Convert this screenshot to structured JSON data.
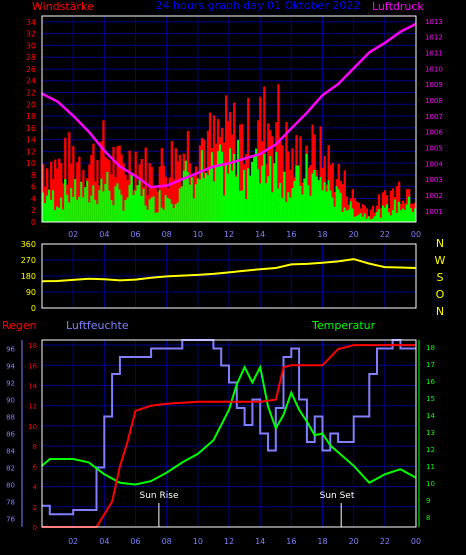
{
  "header": {
    "left_label": "Windstärke",
    "title": "24 hours graph day  01 Oktober 2022",
    "right_label": "Luftdruck"
  },
  "panel3": {
    "rain_label": "Regen",
    "humidity_label": "Luftfeuchte",
    "temp_label": "Temperatur",
    "sunrise_label": "Sun Rise",
    "sunset_label": "Sun Set"
  },
  "direction_letters": [
    "N",
    "W",
    "S",
    "O",
    "N"
  ],
  "colors": {
    "wind_gust": "#ff0000",
    "wind_avg": "#00ff00",
    "pressure": "#ff00ff",
    "direction": "#ffff00",
    "humidity": "#8080ff",
    "temperature": "#00ff00",
    "rain": "#ff0000",
    "grid": "#00008b",
    "frame": "#ffffff"
  },
  "chart_data": [
    {
      "type": "bar",
      "hour_ticks": [
        "02",
        "04",
        "06",
        "08",
        "10",
        "12",
        "14",
        "16",
        "18",
        "20",
        "22",
        "00"
      ],
      "left_axis": {
        "ticks": [
          0,
          2,
          4,
          6,
          8,
          10,
          12,
          14,
          16,
          18,
          20,
          22,
          24,
          26,
          28,
          30,
          32,
          34
        ],
        "ylim": [
          0,
          35
        ]
      },
      "right_axis": {
        "ticks": [
          1001,
          1002,
          1003,
          1004,
          1005,
          1006,
          1007,
          1008,
          1009,
          1010,
          1011,
          1012,
          1013
        ],
        "ylim": [
          1000.3,
          1013.3
        ]
      },
      "series": [
        {
          "name": "Windstärke gusts",
          "x": [
            0,
            1,
            2,
            3,
            4,
            5,
            6,
            7,
            8,
            9,
            10,
            11,
            12,
            13,
            14,
            15,
            16,
            17,
            18,
            19,
            20,
            21,
            22,
            23,
            24
          ],
          "values": [
            10,
            9,
            11,
            10,
            12,
            9,
            11,
            8,
            10,
            12,
            14,
            13,
            15,
            14,
            16,
            18,
            10,
            12,
            11,
            8,
            4,
            2,
            4,
            6,
            5
          ]
        },
        {
          "name": "Windstärke average",
          "x": [
            0,
            1,
            2,
            3,
            4,
            5,
            6,
            7,
            8,
            9,
            10,
            11,
            12,
            13,
            14,
            15,
            16,
            17,
            18,
            19,
            20,
            21,
            22,
            23,
            24
          ],
          "values": [
            5,
            4,
            6,
            5,
            7,
            4,
            6,
            3,
            5,
            7,
            9,
            8,
            10,
            9,
            11,
            12,
            6,
            8,
            7,
            4,
            2,
            1,
            2,
            3,
            3
          ]
        },
        {
          "name": "Luftdruck",
          "x": [
            0,
            1,
            2,
            3,
            4,
            5,
            6,
            7,
            8,
            9,
            10,
            11,
            12,
            13,
            14,
            15,
            16,
            17,
            18,
            19,
            20,
            21,
            22,
            23,
            24
          ],
          "values": [
            1008.4,
            1007.9,
            1007.0,
            1006.0,
            1004.8,
            1003.8,
            1003.2,
            1002.5,
            1002.6,
            1003.0,
            1003.4,
            1003.8,
            1004.0,
            1004.3,
            1004.6,
            1005.2,
            1006.2,
            1007.2,
            1008.3,
            1009.0,
            1010.0,
            1011.0,
            1011.6,
            1012.3,
            1012.8
          ]
        }
      ]
    },
    {
      "type": "line",
      "hour_ticks": [
        "02",
        "04",
        "06",
        "08",
        "10",
        "12",
        "14",
        "16",
        "18",
        "20",
        "22",
        "00"
      ],
      "y_ticks": [
        0,
        90,
        180,
        270,
        360
      ],
      "ylim": [
        0,
        360
      ],
      "series": [
        {
          "name": "Windrichtung",
          "x": [
            0,
            1,
            2,
            3,
            4,
            5,
            6,
            7,
            8,
            9,
            10,
            11,
            12,
            13,
            14,
            15,
            16,
            17,
            18,
            19,
            20,
            21,
            22,
            23,
            24
          ],
          "values": [
            150,
            152,
            158,
            165,
            162,
            155,
            160,
            170,
            178,
            182,
            186,
            192,
            200,
            210,
            218,
            225,
            245,
            248,
            255,
            262,
            275,
            250,
            230,
            228,
            225
          ]
        }
      ]
    },
    {
      "type": "line",
      "hour_ticks": [
        "02",
        "04",
        "06",
        "08",
        "10",
        "12",
        "14",
        "16",
        "18",
        "20",
        "22",
        "00"
      ],
      "humidity_axis": {
        "ticks": [
          76,
          78,
          80,
          82,
          84,
          86,
          88,
          90,
          92,
          94,
          96
        ],
        "ylim": [
          75,
          97
        ]
      },
      "rain_axis": {
        "ticks": [
          0,
          2,
          4,
          6,
          8,
          10,
          12,
          14,
          16,
          18
        ],
        "ylim": [
          0,
          18.5
        ]
      },
      "temp_axis": {
        "ticks": [
          8,
          9,
          10,
          11,
          12,
          13,
          14,
          15,
          16,
          17,
          18
        ],
        "ylim": [
          7.4,
          18.4
        ]
      },
      "sunrise_hour": 7.5,
      "sunset_hour": 19.2,
      "series": [
        {
          "name": "Luftfeuchte",
          "x": [
            0,
            0.5,
            1,
            2,
            3,
            3.5,
            4,
            4.5,
            5,
            6,
            7,
            8,
            9,
            10,
            11,
            11.5,
            12,
            12.5,
            13,
            13.5,
            14,
            14.5,
            15,
            15.5,
            16,
            16.5,
            17,
            17.5,
            18,
            18.5,
            19,
            20,
            21,
            21.5,
            22,
            22.5,
            23,
            23.5,
            24
          ],
          "values": [
            77.5,
            76.5,
            76.5,
            77,
            77,
            82,
            88,
            93,
            95,
            95,
            96,
            96,
            97,
            97,
            96,
            94,
            92,
            89,
            87,
            90,
            86,
            84,
            89,
            95,
            96,
            90,
            85,
            88,
            84,
            86,
            85,
            88,
            93,
            96,
            96,
            97,
            96,
            96,
            96
          ]
        },
        {
          "name": "Temperatur",
          "x": [
            0,
            0.5,
            1,
            2,
            3,
            4,
            5,
            6,
            7,
            8,
            9,
            10,
            11,
            12,
            12.5,
            13,
            13.5,
            14,
            14.5,
            15,
            15.5,
            16,
            16.5,
            17,
            17.5,
            18,
            18.5,
            19,
            20,
            21,
            22,
            23,
            24
          ],
          "values": [
            11,
            11.4,
            11.4,
            11.4,
            11.2,
            10.5,
            10.0,
            9.9,
            10.1,
            10.6,
            11.2,
            11.7,
            12.5,
            14.3,
            15.8,
            16.8,
            15.9,
            16.8,
            14.5,
            13.2,
            14.0,
            15.3,
            14.3,
            13.6,
            12.8,
            12.9,
            12.2,
            11.8,
            11.0,
            10.0,
            10.5,
            10.8,
            10.3
          ]
        },
        {
          "name": "Regen",
          "x": [
            0,
            3.5,
            4.5,
            5,
            5.5,
            6,
            7,
            8,
            10,
            12,
            14,
            15,
            15.5,
            16,
            17,
            18,
            19,
            20,
            21,
            22,
            23,
            24
          ],
          "values": [
            0,
            0,
            2.5,
            6,
            8.5,
            11.5,
            12,
            12.2,
            12.4,
            12.4,
            12.4,
            12.6,
            15.8,
            16,
            16,
            16,
            17.6,
            18,
            18,
            18,
            18,
            18
          ]
        }
      ]
    }
  ]
}
